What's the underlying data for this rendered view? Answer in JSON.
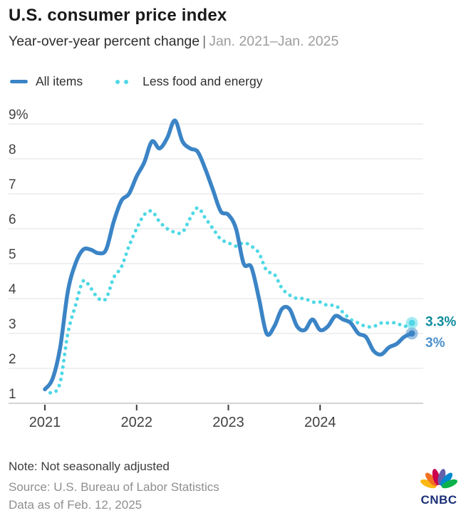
{
  "header": {
    "title": "U.S. consumer price index"
  },
  "subtitle": {
    "main": "Year-over-year percent change",
    "separator": "|",
    "range": "Jan. 2021–Jan. 2025"
  },
  "legend": [
    {
      "label": "All items"
    },
    {
      "label": "Less food and energy"
    }
  ],
  "chart_data": {
    "type": "line",
    "title": "U.S. consumer price index",
    "subtitle": "Year-over-year percent change",
    "period": "Jan. 2021–Jan. 2025",
    "x_unit": "month",
    "x_start": "Jan 2021",
    "x_end": "Jan 2025",
    "ylim": [
      1,
      9
    ],
    "grid": "horizontal",
    "legend_position": "top",
    "y_ticks": [
      {
        "v": 1,
        "label": "1"
      },
      {
        "v": 2,
        "label": "2"
      },
      {
        "v": 3,
        "label": "3"
      },
      {
        "v": 4,
        "label": "4"
      },
      {
        "v": 5,
        "label": "5"
      },
      {
        "v": 6,
        "label": "6"
      },
      {
        "v": 7,
        "label": "7"
      },
      {
        "v": 8,
        "label": "8"
      },
      {
        "v": 9,
        "label": "9%"
      }
    ],
    "x_ticks": [
      {
        "i": 0,
        "label": "2021"
      },
      {
        "i": 12,
        "label": "2022"
      },
      {
        "i": 24,
        "label": "2023"
      },
      {
        "i": 36,
        "label": "2024"
      }
    ],
    "series": [
      {
        "id": "all-items",
        "name": "All items",
        "style": "solid",
        "color": "#3b84c6",
        "end_label": "3%",
        "end_label_color": "#4b90cd",
        "values": [
          1.4,
          1.7,
          2.6,
          4.2,
          5.0,
          5.4,
          5.4,
          5.3,
          5.4,
          6.2,
          6.8,
          7.0,
          7.5,
          7.9,
          8.5,
          8.3,
          8.6,
          9.1,
          8.5,
          8.3,
          8.2,
          7.7,
          7.1,
          6.5,
          6.4,
          6.0,
          5.0,
          4.9,
          4.0,
          3.0,
          3.2,
          3.7,
          3.7,
          3.2,
          3.1,
          3.4,
          3.1,
          3.2,
          3.5,
          3.4,
          3.3,
          3.0,
          2.9,
          2.5,
          2.4,
          2.6,
          2.7,
          2.9,
          3.0
        ]
      },
      {
        "id": "less-food-and-energy",
        "name": "Less food and energy",
        "style": "dotted",
        "color": "#4fd8e5",
        "end_label": "3.3%",
        "end_label_color": "#0e8c9d",
        "values": [
          1.4,
          1.3,
          1.6,
          3.0,
          3.8,
          4.5,
          4.3,
          4.0,
          4.0,
          4.6,
          4.9,
          5.5,
          6.0,
          6.4,
          6.5,
          6.2,
          6.0,
          5.9,
          5.9,
          6.3,
          6.6,
          6.3,
          6.0,
          5.7,
          5.6,
          5.5,
          5.6,
          5.5,
          5.3,
          4.8,
          4.7,
          4.3,
          4.1,
          4.0,
          4.0,
          3.9,
          3.9,
          3.8,
          3.8,
          3.6,
          3.4,
          3.3,
          3.2,
          3.2,
          3.3,
          3.3,
          3.3,
          3.2,
          3.3
        ]
      }
    ]
  },
  "footer": {
    "note": "Note: Not seasonally adjusted",
    "source": "Source: U.S. Bureau of Labor Statistics",
    "as_of": "Data as of Feb. 12, 2025"
  },
  "branding": {
    "logo_text": "CNBC",
    "peacock_colors": [
      "#FCB711",
      "#F37021",
      "#CC004C",
      "#6460AA",
      "#0089D0",
      "#0DB14B"
    ]
  }
}
